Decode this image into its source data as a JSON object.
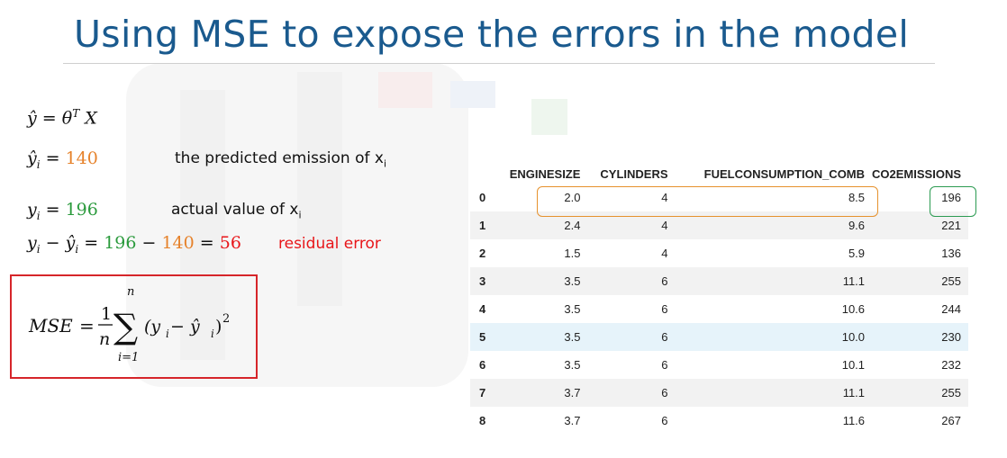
{
  "title": "Using MSE to expose the errors in the model",
  "equations": {
    "eq1": {
      "yhat": "ŷ",
      "equals": "=",
      "theta": "θ",
      "sup": "T",
      "x": "X"
    },
    "eq2": {
      "yhat": "ŷ",
      "sub": "i",
      "equals": "=",
      "value": "140",
      "text": "the predicted emission of x",
      "text_sub": "i"
    },
    "eq3": {
      "y": "y",
      "sub": "i",
      "equals": "=",
      "value": "196",
      "text": "actual value of x",
      "text_sub": "i"
    },
    "eq4": {
      "y": "y",
      "sub1": "i",
      "minus": "−",
      "yhat": "ŷ",
      "sub2": "i",
      "equals": "=",
      "a": "196",
      "minus2": "−",
      "b": "140",
      "equals2": "=",
      "c": "56",
      "text": "residual error"
    },
    "mse": {
      "lhs": "MSE",
      "equals": "=",
      "one": "1",
      "n": "n",
      "sum_top": "n",
      "sum_bottom": "i=1",
      "sigma": "∑",
      "body": "(y",
      "sub1": "i",
      "minus": " − ŷ",
      "sub2": "i",
      "close": ")",
      "power": "2"
    }
  },
  "table": {
    "headers": [
      "",
      "ENGINESIZE",
      "CYLINDERS",
      "FUELCONSUMPTION_COMB",
      "CO2EMISSIONS"
    ],
    "rows": [
      [
        "0",
        "2.0",
        "4",
        "8.5",
        "196"
      ],
      [
        "1",
        "2.4",
        "4",
        "9.6",
        "221"
      ],
      [
        "2",
        "1.5",
        "4",
        "5.9",
        "136"
      ],
      [
        "3",
        "3.5",
        "6",
        "11.1",
        "255"
      ],
      [
        "4",
        "3.5",
        "6",
        "10.6",
        "244"
      ],
      [
        "5",
        "3.5",
        "6",
        "10.0",
        "230"
      ],
      [
        "6",
        "3.5",
        "6",
        "10.1",
        "232"
      ],
      [
        "7",
        "3.7",
        "6",
        "11.1",
        "255"
      ],
      [
        "8",
        "3.7",
        "6",
        "11.6",
        "267"
      ]
    ]
  },
  "colors": {
    "title": "#1a5a8e",
    "predicted": "#e6822b",
    "actual": "#2a9a3c",
    "residual": "#e8161a",
    "mse_box": "#d6252a",
    "row_highlight": "#e6f3fa"
  }
}
